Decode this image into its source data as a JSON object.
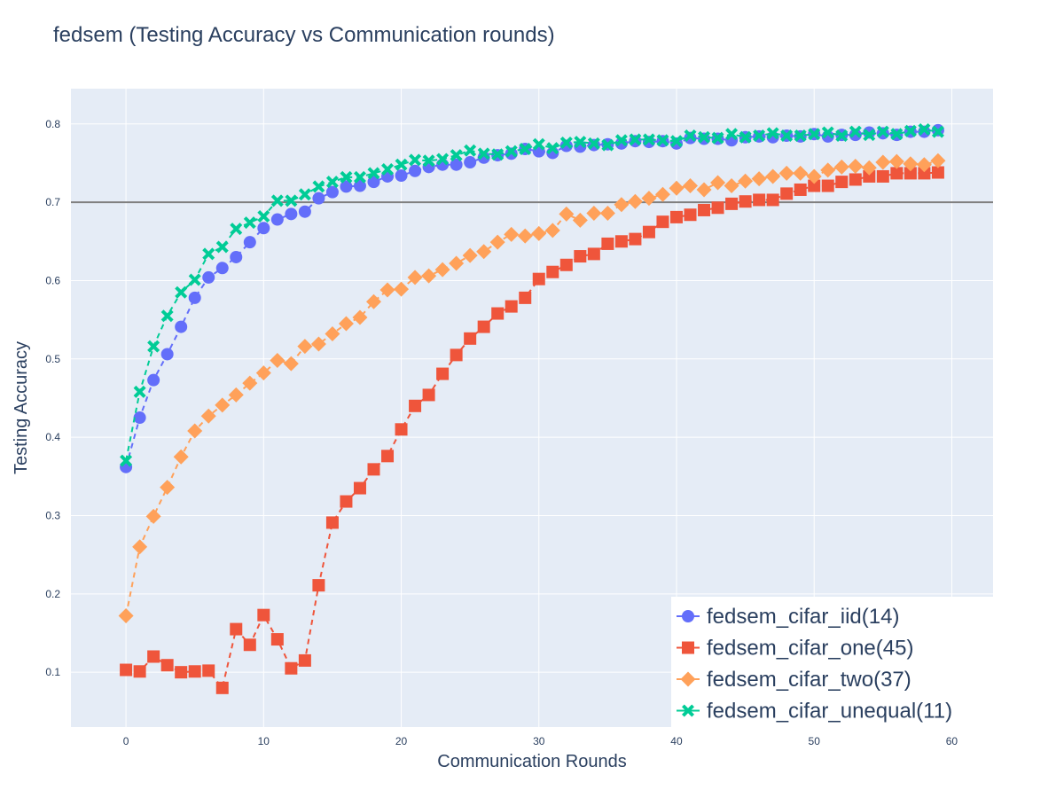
{
  "chart_data": {
    "type": "line",
    "title": "fedsem (Testing Accuracy vs Communication rounds)",
    "xlabel": "Communication Rounds",
    "ylabel": "Testing Accuracy",
    "xlim": [
      -4,
      63
    ],
    "ylim": [
      0.03,
      0.845
    ],
    "xticks": [
      0,
      10,
      20,
      30,
      40,
      50,
      60
    ],
    "yticks": [
      0.1,
      0.2,
      0.3,
      0.4,
      0.5,
      0.6,
      0.7,
      0.8
    ],
    "xtick_labels": [
      "0",
      "10",
      "20",
      "30",
      "40",
      "50",
      "60"
    ],
    "ytick_labels": [
      "0.1",
      "0.2",
      "0.3",
      "0.4",
      "0.5",
      "0.6",
      "0.7",
      "0.8"
    ],
    "grid": true,
    "legend_position": "bottom-right",
    "reference_line": {
      "y": 0.7,
      "color": "#7f7f7f"
    },
    "x": [
      0,
      1,
      2,
      3,
      4,
      5,
      6,
      7,
      8,
      9,
      10,
      11,
      12,
      13,
      14,
      15,
      16,
      17,
      18,
      19,
      20,
      21,
      22,
      23,
      24,
      25,
      26,
      27,
      28,
      29,
      30,
      31,
      32,
      33,
      34,
      35,
      36,
      37,
      38,
      39,
      40,
      41,
      42,
      43,
      44,
      45,
      46,
      47,
      48,
      49,
      50,
      51,
      52,
      53,
      54,
      55,
      56,
      57,
      58,
      59
    ],
    "series": [
      {
        "name": "fedsem_cifar_iid(14)",
        "marker": "circle",
        "color": "#636efa",
        "values": [
          0.362,
          0.425,
          0.473,
          0.506,
          0.541,
          0.578,
          0.604,
          0.616,
          0.63,
          0.649,
          0.667,
          0.678,
          0.685,
          0.688,
          0.705,
          0.713,
          0.72,
          0.721,
          0.726,
          0.733,
          0.734,
          0.74,
          0.745,
          0.748,
          0.748,
          0.751,
          0.757,
          0.76,
          0.762,
          0.768,
          0.765,
          0.763,
          0.772,
          0.771,
          0.773,
          0.774,
          0.775,
          0.778,
          0.777,
          0.778,
          0.775,
          0.782,
          0.781,
          0.781,
          0.779,
          0.783,
          0.784,
          0.783,
          0.785,
          0.784,
          0.787,
          0.784,
          0.786,
          0.786,
          0.789,
          0.788,
          0.786,
          0.79,
          0.79,
          0.792
        ]
      },
      {
        "name": "fedsem_cifar_one(45)",
        "marker": "square",
        "color": "#ef553b",
        "values": [
          0.103,
          0.101,
          0.12,
          0.109,
          0.1,
          0.101,
          0.102,
          0.08,
          0.155,
          0.135,
          0.173,
          0.142,
          0.105,
          0.115,
          0.211,
          0.291,
          0.318,
          0.335,
          0.359,
          0.376,
          0.41,
          0.44,
          0.454,
          0.481,
          0.505,
          0.526,
          0.541,
          0.558,
          0.567,
          0.578,
          0.602,
          0.611,
          0.62,
          0.631,
          0.634,
          0.647,
          0.65,
          0.653,
          0.662,
          0.675,
          0.681,
          0.684,
          0.69,
          0.693,
          0.698,
          0.701,
          0.703,
          0.703,
          0.711,
          0.716,
          0.721,
          0.721,
          0.726,
          0.729,
          0.733,
          0.733,
          0.737,
          0.737,
          0.737,
          0.738
        ]
      },
      {
        "name": "fedsem_cifar_two(37)",
        "marker": "diamond",
        "color": "#ffa15a",
        "values": [
          0.172,
          0.26,
          0.299,
          0.336,
          0.375,
          0.408,
          0.427,
          0.441,
          0.454,
          0.469,
          0.482,
          0.498,
          0.494,
          0.516,
          0.519,
          0.532,
          0.545,
          0.553,
          0.573,
          0.588,
          0.589,
          0.604,
          0.606,
          0.614,
          0.622,
          0.632,
          0.637,
          0.649,
          0.659,
          0.657,
          0.66,
          0.664,
          0.685,
          0.677,
          0.686,
          0.686,
          0.697,
          0.701,
          0.705,
          0.71,
          0.718,
          0.721,
          0.716,
          0.725,
          0.721,
          0.727,
          0.73,
          0.733,
          0.737,
          0.737,
          0.733,
          0.741,
          0.745,
          0.746,
          0.744,
          0.751,
          0.752,
          0.749,
          0.748,
          0.753
        ]
      },
      {
        "name": "fedsem_cifar_unequal(11)",
        "marker": "x",
        "color": "#00cc96",
        "values": [
          0.37,
          0.458,
          0.516,
          0.555,
          0.585,
          0.601,
          0.634,
          0.643,
          0.666,
          0.674,
          0.682,
          0.702,
          0.702,
          0.71,
          0.72,
          0.726,
          0.732,
          0.732,
          0.737,
          0.742,
          0.748,
          0.754,
          0.753,
          0.755,
          0.76,
          0.766,
          0.762,
          0.761,
          0.765,
          0.768,
          0.774,
          0.769,
          0.776,
          0.777,
          0.775,
          0.773,
          0.779,
          0.78,
          0.78,
          0.779,
          0.778,
          0.785,
          0.783,
          0.782,
          0.787,
          0.783,
          0.785,
          0.788,
          0.785,
          0.785,
          0.787,
          0.789,
          0.785,
          0.79,
          0.786,
          0.79,
          0.787,
          0.791,
          0.793,
          0.79
        ]
      }
    ]
  }
}
